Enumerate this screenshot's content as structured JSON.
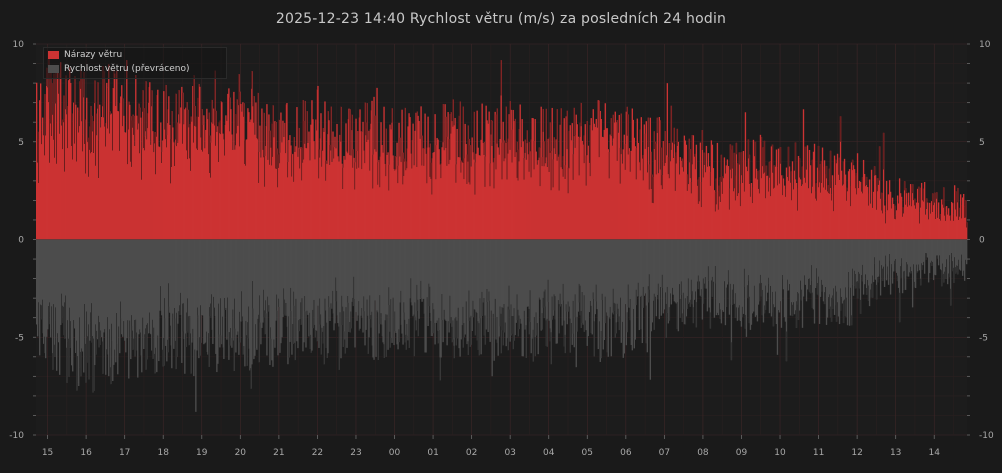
{
  "title": "2025-12-23  14:40  Rychlost větru (m/s) za posledních 24 hodin",
  "colors": {
    "background": "#1a1a1a",
    "gust": "#cc3333",
    "speed": "#4d4d4d",
    "grid": "#3a2426",
    "text": "#bdbdbd"
  },
  "legend": {
    "items": [
      {
        "label": "Nárazy větru",
        "color": "#cc3333"
      },
      {
        "label": "Rychlost větru (převráceno)",
        "color": "#4d4d4d"
      }
    ]
  },
  "chart_data": {
    "type": "bar",
    "title": "2025-12-23  14:40  Rychlost větru (m/s) za posledních 24 hodin",
    "xlabel": "",
    "ylabel": "",
    "ylim": [
      -10,
      10
    ],
    "yticks": [
      -10,
      -5,
      0,
      5,
      10
    ],
    "ytick_labels": [
      "-10",
      "-5",
      "0",
      "5",
      "10"
    ],
    "x_range_hours": [
      -0.3,
      23.85
    ],
    "xticks": [
      0,
      1,
      2,
      3,
      4,
      5,
      6,
      7,
      8,
      9,
      10,
      11,
      12,
      13,
      14,
      15,
      16,
      17,
      18,
      19,
      20,
      21,
      22,
      23
    ],
    "xtick_labels": [
      "15",
      "16",
      "17",
      "18",
      "19",
      "20",
      "21",
      "22",
      "23",
      "00",
      "01",
      "02",
      "03",
      "04",
      "05",
      "06",
      "07",
      "08",
      "09",
      "10",
      "11",
      "12",
      "13",
      "14"
    ],
    "grid": true,
    "legend_position": "top-left",
    "series": [
      {
        "name": "Nárazy větru",
        "sample_hours": [
          -0.3,
          0.0,
          0.5,
          1.0,
          1.5,
          2.0,
          2.5,
          3.0,
          3.5,
          4.0,
          4.5,
          5.0,
          5.5,
          6.0,
          6.5,
          7.0,
          7.5,
          8.0,
          8.5,
          9.0,
          9.5,
          10.0,
          10.5,
          11.0,
          11.5,
          12.0,
          12.5,
          13.0,
          13.5,
          14.0,
          14.5,
          15.0,
          15.5,
          16.0,
          16.5,
          17.0,
          17.5,
          18.0,
          18.5,
          19.0,
          19.5,
          20.0,
          20.5,
          21.0,
          21.5,
          22.0,
          22.5,
          23.0,
          23.5,
          23.85
        ],
        "values": [
          6.3,
          7.2,
          7.3,
          7.0,
          7.2,
          6.6,
          6.5,
          6.2,
          6.1,
          6.4,
          6.2,
          6.3,
          5.9,
          5.6,
          5.5,
          5.5,
          5.3,
          5.3,
          5.7,
          5.1,
          5.4,
          5.3,
          5.5,
          5.3,
          5.6,
          5.4,
          5.3,
          5.1,
          5.3,
          5.5,
          5.4,
          5.4,
          4.8,
          4.6,
          4.1,
          3.9,
          3.6,
          3.7,
          4.0,
          3.8,
          3.7,
          3.6,
          3.6,
          3.4,
          2.5,
          2.2,
          2.1,
          1.9,
          1.9,
          1.7
        ]
      },
      {
        "name": "Rychlost větru (převráceno)",
        "sample_hours": [
          -0.3,
          0.0,
          0.5,
          1.0,
          1.5,
          2.0,
          2.5,
          3.0,
          3.5,
          4.0,
          4.5,
          5.0,
          5.5,
          6.0,
          6.5,
          7.0,
          7.5,
          8.0,
          8.5,
          9.0,
          9.5,
          10.0,
          10.5,
          11.0,
          11.5,
          12.0,
          12.5,
          13.0,
          13.5,
          14.0,
          14.5,
          15.0,
          15.5,
          16.0,
          16.5,
          17.0,
          17.5,
          18.0,
          18.5,
          19.0,
          19.5,
          20.0,
          20.5,
          21.0,
          21.5,
          22.0,
          22.5,
          23.0,
          23.5,
          23.85
        ],
        "values": [
          -4.5,
          -5.4,
          -5.9,
          -6.0,
          -5.9,
          -5.8,
          -5.4,
          -5.0,
          -5.2,
          -5.4,
          -5.0,
          -5.3,
          -4.8,
          -5.0,
          -4.5,
          -4.5,
          -4.6,
          -4.3,
          -4.7,
          -4.3,
          -4.5,
          -4.4,
          -4.7,
          -4.3,
          -4.6,
          -4.5,
          -4.6,
          -4.2,
          -4.5,
          -4.6,
          -4.5,
          -4.5,
          -3.9,
          -3.8,
          -3.5,
          -3.4,
          -3.2,
          -3.3,
          -3.5,
          -3.3,
          -3.3,
          -3.2,
          -3.2,
          -3.2,
          -2.1,
          -1.9,
          -1.8,
          -1.6,
          -1.6,
          -1.4
        ]
      }
    ]
  }
}
